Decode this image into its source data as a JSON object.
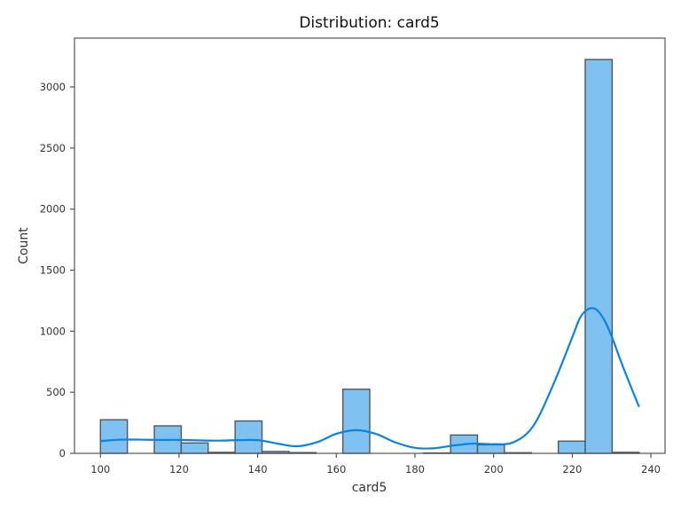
{
  "chart_data": {
    "type": "bar",
    "title": "Distribution: card5",
    "xlabel": "card5",
    "ylabel": "Count",
    "xlim": [
      93.4,
      243.6
    ],
    "ylim": [
      0,
      3400
    ],
    "xticks": [
      100,
      120,
      140,
      160,
      180,
      200,
      220,
      240
    ],
    "yticks": [
      0,
      500,
      1000,
      1500,
      2000,
      2500,
      3000
    ],
    "grid": false,
    "legend": "none",
    "bins": [
      {
        "x0": 100.0,
        "x1": 106.85,
        "count": 275
      },
      {
        "x0": 106.85,
        "x1": 113.7,
        "count": 0
      },
      {
        "x0": 113.7,
        "x1": 120.55,
        "count": 225
      },
      {
        "x0": 120.55,
        "x1": 127.4,
        "count": 85
      },
      {
        "x0": 127.4,
        "x1": 134.25,
        "count": 8
      },
      {
        "x0": 134.25,
        "x1": 141.1,
        "count": 265
      },
      {
        "x0": 141.1,
        "x1": 147.95,
        "count": 15
      },
      {
        "x0": 147.95,
        "x1": 154.8,
        "count": 6
      },
      {
        "x0": 154.8,
        "x1": 161.65,
        "count": 0
      },
      {
        "x0": 161.65,
        "x1": 168.5,
        "count": 525
      },
      {
        "x0": 168.5,
        "x1": 175.35,
        "count": 0
      },
      {
        "x0": 175.35,
        "x1": 182.2,
        "count": 0
      },
      {
        "x0": 182.2,
        "x1": 189.05,
        "count": 3
      },
      {
        "x0": 189.05,
        "x1": 195.9,
        "count": 150
      },
      {
        "x0": 195.9,
        "x1": 202.75,
        "count": 70
      },
      {
        "x0": 202.75,
        "x1": 209.6,
        "count": 5
      },
      {
        "x0": 209.6,
        "x1": 216.45,
        "count": 0
      },
      {
        "x0": 216.45,
        "x1": 223.3,
        "count": 100
      },
      {
        "x0": 223.3,
        "x1": 230.15,
        "count": 3225
      },
      {
        "x0": 230.15,
        "x1": 237.0,
        "count": 8
      }
    ],
    "kde": {
      "x": [
        100,
        105,
        110,
        115,
        120,
        125,
        130,
        135,
        140,
        145,
        150,
        155,
        160,
        165,
        170,
        175,
        180,
        185,
        190,
        195,
        200,
        205,
        210,
        215,
        220,
        222,
        224,
        226,
        228,
        230,
        233,
        237
      ],
      "y": [
        100,
        112,
        112,
        110,
        110,
        106,
        104,
        108,
        108,
        80,
        58,
        90,
        160,
        190,
        160,
        90,
        45,
        42,
        65,
        80,
        75,
        90,
        220,
        550,
        950,
        1110,
        1180,
        1180,
        1100,
        960,
        700,
        380
      ]
    },
    "colors": {
      "bar_fill": "#7fc2f2",
      "bar_edge": "#555555",
      "kde_line": "#0a84e0",
      "axis": "#555555"
    }
  }
}
